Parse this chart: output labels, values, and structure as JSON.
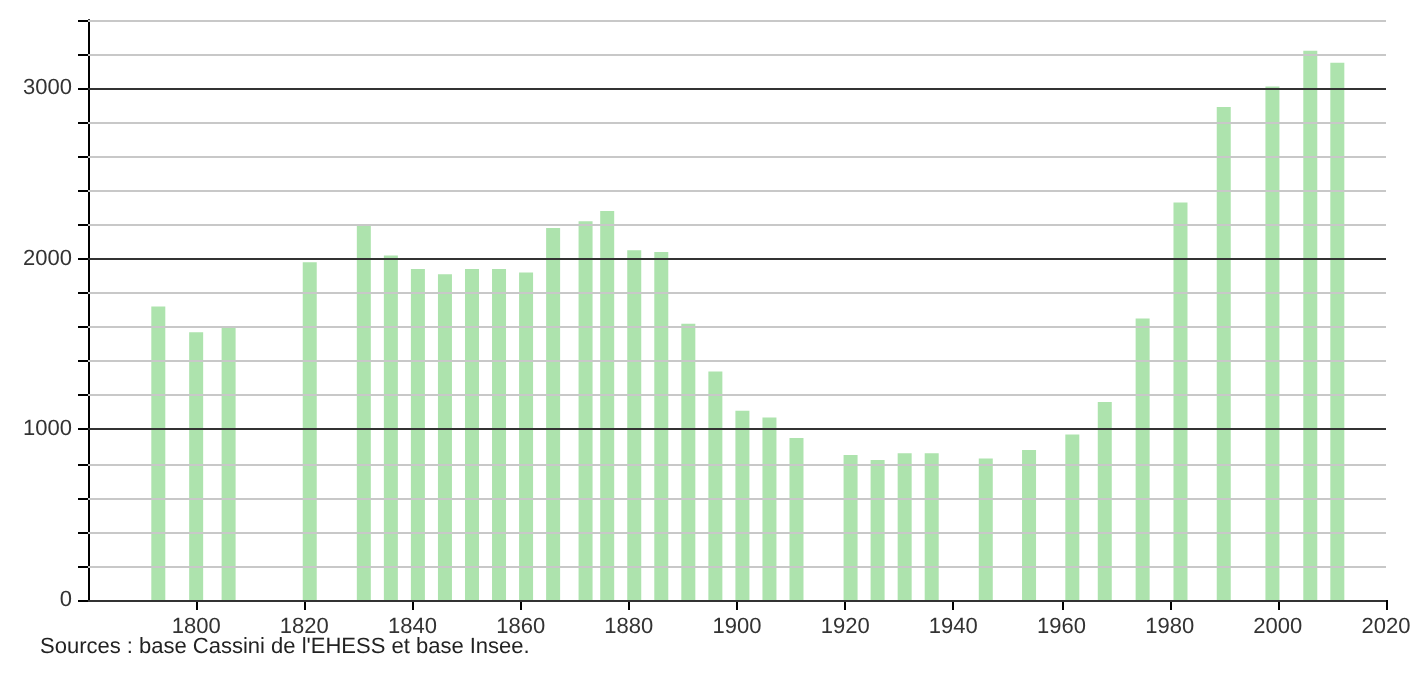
{
  "chart_data": {
    "type": "bar",
    "x": [
      1793,
      1800,
      1806,
      1821,
      1831,
      1836,
      1841,
      1846,
      1851,
      1856,
      1861,
      1866,
      1872,
      1876,
      1881,
      1886,
      1891,
      1896,
      1901,
      1906,
      1911,
      1921,
      1926,
      1931,
      1936,
      1946,
      1954,
      1962,
      1968,
      1975,
      1982,
      1990,
      1999,
      2006,
      2011
    ],
    "values": [
      1720,
      1570,
      1600,
      1980,
      2200,
      2020,
      1940,
      1910,
      1940,
      1940,
      1920,
      2180,
      2220,
      2280,
      2050,
      2040,
      1620,
      1340,
      1110,
      1070,
      950,
      850,
      820,
      860,
      860,
      830,
      880,
      970,
      1160,
      1650,
      2330,
      2890,
      3010,
      3220,
      3150
    ],
    "color": "#ade3ad",
    "xlim": [
      1780,
      2020
    ],
    "xticks": [
      1800,
      1820,
      1840,
      1860,
      1880,
      1900,
      1920,
      1940,
      1960,
      1980,
      2000,
      2020
    ],
    "ylim": [
      0,
      3400
    ],
    "yticks": [
      0,
      {
        "value": 200,
        "label": null
      },
      {
        "value": 400,
        "label": null
      },
      {
        "value": 600,
        "label": null
      },
      {
        "value": 800,
        "label": null
      },
      1000,
      {
        "value": 1200,
        "label": null
      },
      {
        "value": 1400,
        "label": null
      },
      {
        "value": 1600,
        "label": null
      },
      {
        "value": 1800,
        "label": null
      },
      2000,
      {
        "value": 2200,
        "label": null
      },
      {
        "value": 2400,
        "label": null
      },
      {
        "value": 2600,
        "label": null
      },
      {
        "value": 2800,
        "label": null
      },
      3000,
      {
        "value": 3200,
        "label": null
      },
      {
        "value": 3400,
        "label": null
      }
    ],
    "grid": "y",
    "annotations": [
      "Sources : base Cassini de l'EHESS et base Insee."
    ]
  }
}
